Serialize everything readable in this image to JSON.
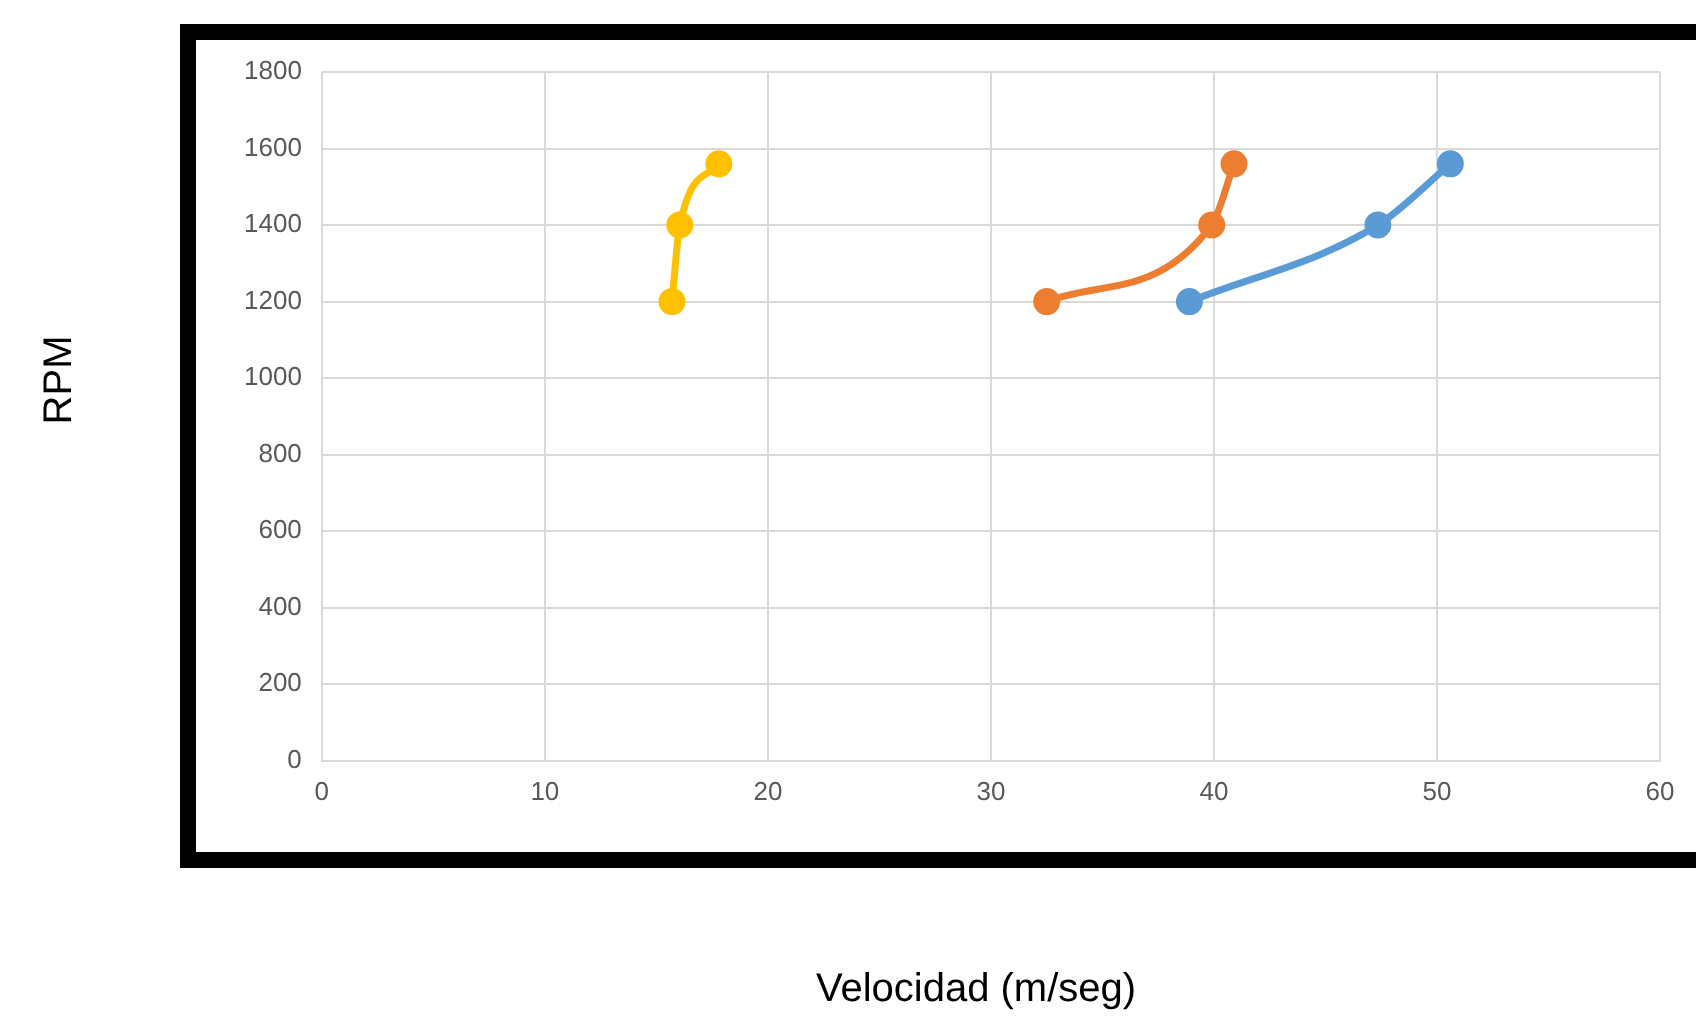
{
  "chart_data": {
    "type": "line",
    "xlabel": "Velocidad (m/seg)",
    "ylabel": "RPM",
    "series": [
      {
        "color": "#ffc000",
        "x": [
          15.7,
          16.05,
          17.8
        ],
        "values": [
          1200,
          1400,
          1560
        ]
      },
      {
        "color": "#ed7d31",
        "x": [
          32.5,
          39.9,
          40.9
        ],
        "values": [
          1200,
          1400,
          1560
        ]
      },
      {
        "color": "#5b9bd5",
        "x": [
          38.9,
          47.35,
          50.6
        ],
        "values": [
          1200,
          1400,
          1560
        ]
      }
    ],
    "xlim": [
      0,
      60
    ],
    "xticks": [
      0,
      10,
      20,
      30,
      40,
      50,
      60
    ],
    "ylim": [
      0,
      1800
    ],
    "yticks": [
      0,
      200,
      400,
      600,
      800,
      1000,
      1200,
      1400,
      1600,
      1800
    ],
    "grid": true,
    "legend": false,
    "marker": "circle",
    "line_style": "solid"
  }
}
